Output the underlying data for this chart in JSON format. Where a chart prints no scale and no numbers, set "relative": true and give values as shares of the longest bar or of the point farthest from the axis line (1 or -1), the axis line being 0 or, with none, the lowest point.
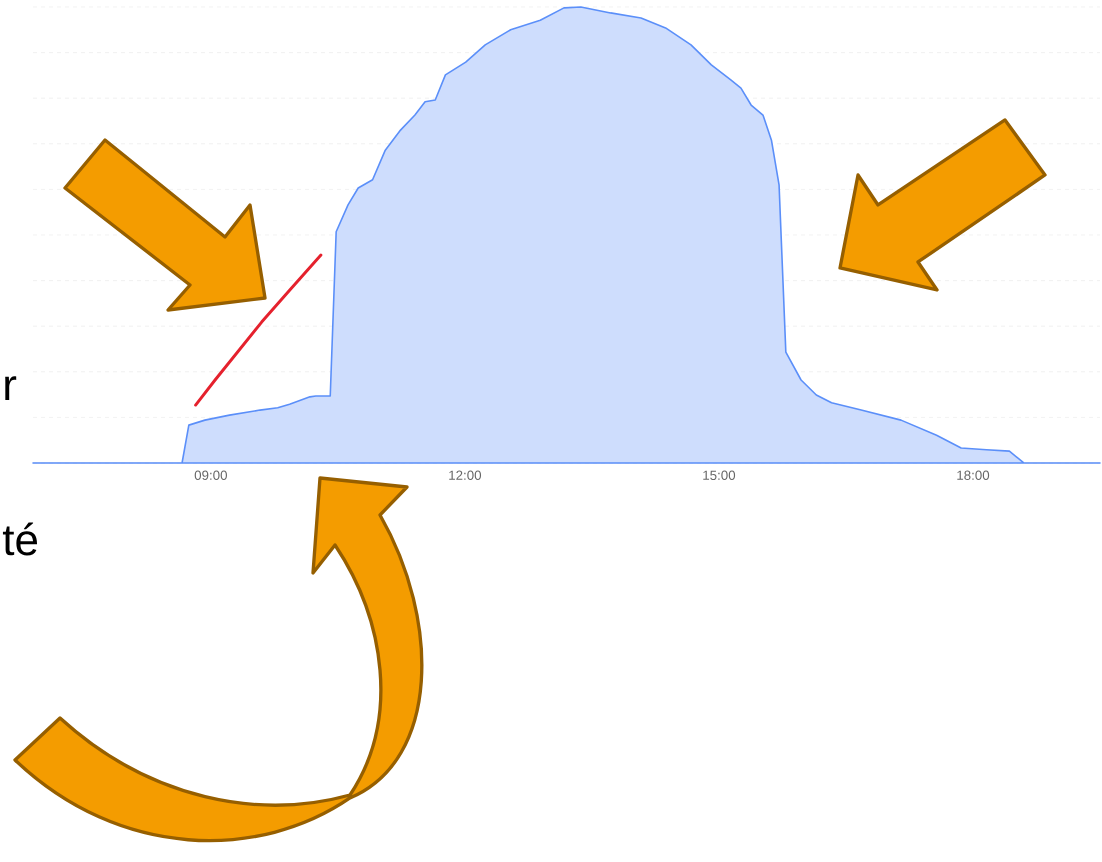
{
  "chart_data": {
    "type": "area",
    "relative": true,
    "grid": "y",
    "xlim": [
      6.9,
      19.5
    ],
    "xticks": [
      {
        "value": 9,
        "label": "09:00"
      },
      {
        "value": 12,
        "label": "12:00"
      },
      {
        "value": 15,
        "label": "15:00"
      },
      {
        "value": 18,
        "label": "18:00"
      }
    ],
    "x": [
      6.9,
      8.66,
      8.74,
      8.93,
      9.22,
      9.58,
      9.79,
      9.93,
      10.17,
      10.24,
      10.41,
      10.48,
      10.62,
      10.74,
      10.91,
      11.06,
      11.24,
      11.41,
      11.53,
      11.65,
      11.77,
      12.01,
      12.24,
      12.54,
      12.89,
      13.17,
      13.37,
      13.72,
      14.08,
      14.37,
      14.67,
      14.91,
      15.14,
      15.26,
      15.38,
      15.52,
      15.62,
      15.71,
      15.79,
      15.97,
      16.15,
      16.33,
      16.68,
      17.15,
      17.57,
      17.86,
      18.16,
      18.43,
      18.6,
      19.5
    ],
    "series": [
      {
        "color": "#5b8ff9",
        "values": [
          0,
          0,
          0.083,
          0.094,
          0.105,
          0.116,
          0.121,
          0.129,
          0.145,
          0.147,
          0.147,
          0.507,
          0.566,
          0.603,
          0.621,
          0.686,
          0.73,
          0.763,
          0.792,
          0.796,
          0.851,
          0.879,
          0.917,
          0.95,
          0.971,
          0.998,
          1,
          0.987,
          0.976,
          0.954,
          0.917,
          0.873,
          0.84,
          0.822,
          0.785,
          0.763,
          0.708,
          0.61,
          0.243,
          0.182,
          0.149,
          0.132,
          0.116,
          0.094,
          0.061,
          0.033,
          0.029,
          0.026,
          0,
          0
        ]
      },
      {
        "type": "line",
        "color": "#e5212d",
        "x": [
          8.82,
          9.05,
          9.6,
          9.93,
          10.3
        ],
        "values": [
          0.127,
          0.182,
          0.309,
          0.379,
          0.456
        ]
      }
    ],
    "annotations": [
      "r",
      "té"
    ]
  }
}
